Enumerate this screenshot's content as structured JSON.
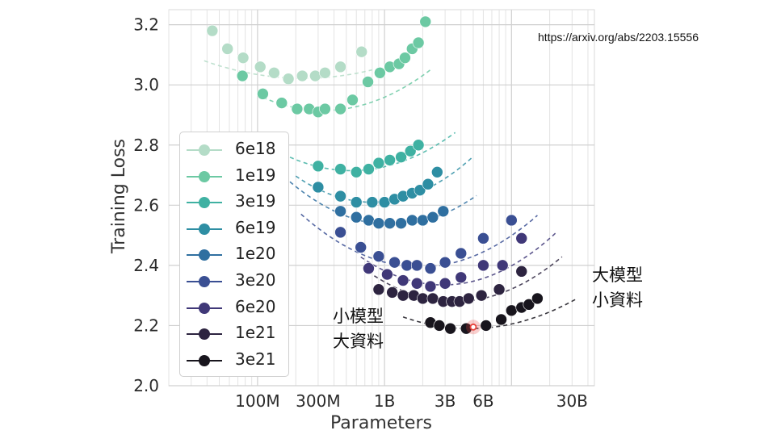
{
  "source_url": "https://arxiv.org/abs/2203.15556",
  "annotations": {
    "small_model": [
      "小模型",
      "大資料"
    ],
    "large_model": [
      "大模型",
      "小資料"
    ]
  },
  "chart_data": {
    "type": "scatter",
    "title": "",
    "xlabel": "Parameters",
    "ylabel": "Training Loss",
    "xscale": "log",
    "xlim": [
      20000000,
      45000000000
    ],
    "ylim": [
      2.0,
      3.25
    ],
    "grid": true,
    "legend_position": "left",
    "x_ticks": [
      {
        "value": 100000000,
        "label": "100M"
      },
      {
        "value": 300000000,
        "label": "300M"
      },
      {
        "value": 1000000000,
        "label": "1B"
      },
      {
        "value": 3000000000,
        "label": "3B"
      },
      {
        "value": 6000000000,
        "label": "6B"
      },
      {
        "value": 30000000000,
        "label": "30B"
      }
    ],
    "y_ticks": [
      {
        "value": 2.0,
        "label": "2.0"
      },
      {
        "value": 2.2,
        "label": "2.2"
      },
      {
        "value": 2.4,
        "label": "2.4"
      },
      {
        "value": 2.6,
        "label": "2.6"
      },
      {
        "value": 2.8,
        "label": "2.8"
      },
      {
        "value": 3.0,
        "label": "3.0"
      },
      {
        "value": 3.2,
        "label": "3.2"
      }
    ],
    "series": [
      {
        "name": "6e18",
        "color": "#b4dcc7",
        "x": [
          44000000,
          58000000,
          77000000,
          105000000,
          135000000,
          175000000,
          225000000,
          285000000,
          340000000,
          450000000,
          660000000
        ],
        "y": [
          3.18,
          3.12,
          3.09,
          3.06,
          3.04,
          3.02,
          3.03,
          3.03,
          3.04,
          3.06,
          3.11
        ],
        "fit": {
          "x_min": 38000000,
          "x_max": 800000000,
          "x_opt": 230000000,
          "y_min": 3.022,
          "k": 0.095
        }
      },
      {
        "name": "1e19",
        "color": "#6cc9a3",
        "x": [
          76000000,
          110000000,
          155000000,
          205000000,
          255000000,
          300000000,
          340000000,
          450000000,
          560000000,
          740000000,
          920000000,
          1100000000,
          1300000000,
          1450000000,
          1650000000,
          1850000000,
          2100000000
        ],
        "y": [
          3.03,
          2.97,
          2.94,
          2.92,
          2.92,
          2.91,
          2.92,
          2.92,
          2.95,
          3.01,
          3.04,
          3.06,
          3.07,
          3.09,
          3.12,
          3.14,
          3.21
        ],
        "fit": {
          "x_min": 110000000,
          "x_max": 2300000000,
          "x_opt": 330000000,
          "y_min": 2.915,
          "k": 0.19
        }
      },
      {
        "name": "3e19",
        "color": "#3fb1a2",
        "x": [
          300000000,
          450000000,
          600000000,
          750000000,
          900000000,
          1100000000,
          1350000000,
          1600000000,
          1850000000
        ],
        "y": [
          2.73,
          2.72,
          2.71,
          2.72,
          2.74,
          2.75,
          2.76,
          2.78,
          2.8
        ],
        "fit": {
          "x_min": 180000000,
          "x_max": 3600000000,
          "x_opt": 550000000,
          "y_min": 2.715,
          "k": 0.19
        }
      },
      {
        "name": "6e19",
        "color": "#2e8ea3",
        "x": [
          300000000,
          450000000,
          600000000,
          800000000,
          1000000000,
          1200000000,
          1400000000,
          1650000000,
          1900000000,
          2200000000,
          2600000000
        ],
        "y": [
          2.66,
          2.63,
          2.61,
          2.61,
          2.61,
          2.62,
          2.63,
          2.64,
          2.65,
          2.67,
          2.71
        ],
        "fit": {
          "x_min": 200000000,
          "x_max": 5000000000,
          "x_opt": 800000000,
          "y_min": 2.61,
          "k": 0.24
        }
      },
      {
        "name": "1e20",
        "color": "#2f6fa0",
        "x": [
          450000000,
          600000000,
          750000000,
          900000000,
          1100000000,
          1350000000,
          1650000000,
          2000000000,
          2400000000,
          2900000000
        ],
        "y": [
          2.58,
          2.56,
          2.55,
          2.54,
          2.54,
          2.54,
          2.55,
          2.55,
          2.56,
          2.58
        ],
        "fit": {
          "x_min": 180000000,
          "x_max": 5300000000,
          "x_opt": 1150000000,
          "y_min": 2.535,
          "k": 0.22
        }
      },
      {
        "name": "3e20",
        "color": "#3a4f93",
        "x": [
          450000000,
          650000000,
          900000000,
          1200000000,
          1500000000,
          1800000000,
          2300000000,
          3000000000,
          4000000000,
          6000000000,
          10000000000
        ],
        "y": [
          2.51,
          2.46,
          2.43,
          2.41,
          2.4,
          2.4,
          2.39,
          2.41,
          2.44,
          2.49,
          2.55
        ],
        "fit": {
          "x_min": 220000000,
          "x_max": 16000000000,
          "x_opt": 1900000000,
          "y_min": 2.395,
          "k": 0.2
        }
      },
      {
        "name": "6e20",
        "color": "#403878",
        "x": [
          750000000,
          1050000000,
          1400000000,
          1800000000,
          2300000000,
          3000000000,
          4000000000,
          6000000000,
          8500000000,
          12000000000
        ],
        "y": [
          2.39,
          2.37,
          2.35,
          2.34,
          2.33,
          2.34,
          2.36,
          2.4,
          2.4,
          2.49
        ],
        "fit": {
          "x_min": 650000000,
          "x_max": 23000000000,
          "x_opt": 2900000000,
          "y_min": 2.335,
          "k": 0.22
        }
      },
      {
        "name": "1e21",
        "color": "#2d2440",
        "x": [
          900000000,
          1150000000,
          1400000000,
          1700000000,
          2000000000,
          2400000000,
          2900000000,
          3400000000,
          3900000000,
          4600000000,
          5800000000,
          8000000000,
          12000000000
        ],
        "y": [
          2.32,
          2.31,
          2.3,
          2.3,
          2.29,
          2.29,
          2.28,
          2.28,
          2.28,
          2.29,
          2.3,
          2.32,
          2.38
        ],
        "fit": {
          "x_min": 830000000,
          "x_max": 25000000000,
          "x_opt": 3600000000,
          "y_min": 2.28,
          "k": 0.21
        }
      },
      {
        "name": "3e21",
        "color": "#18151d",
        "x": [
          2300000000,
          2700000000,
          3300000000,
          4400000000,
          6300000000,
          8300000000,
          10000000000,
          12000000000,
          13700000000,
          16000000000
        ],
        "y": [
          2.21,
          2.2,
          2.19,
          2.19,
          2.2,
          2.22,
          2.25,
          2.26,
          2.27,
          2.29
        ],
        "fit": {
          "x_min": 1400000000,
          "x_max": 33000000000,
          "x_opt": 4700000000,
          "y_min": 2.19,
          "k": 0.14
        }
      }
    ],
    "highlight": {
      "x": 5000000000,
      "y": 2.195,
      "color": "#e8413a"
    }
  }
}
